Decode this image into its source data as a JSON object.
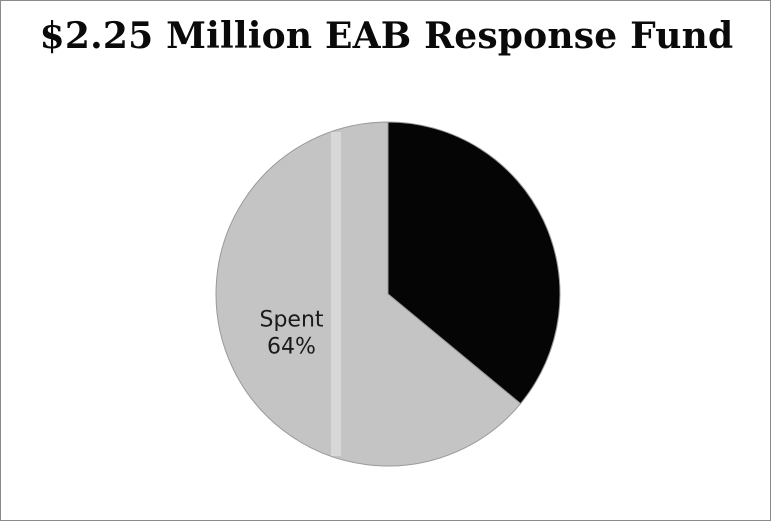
{
  "chart_data": {
    "type": "pie",
    "title": "$2.25 Million EAB Response Fund",
    "slices": [
      {
        "label": "",
        "value": 36,
        "color": "#050505",
        "data_label": ""
      },
      {
        "label": "Spent",
        "value": 64,
        "color": "#c4c4c4",
        "data_label": "Spent\n64%"
      }
    ],
    "start_angle_deg": 0,
    "direction": "clockwise",
    "legend": "none"
  }
}
